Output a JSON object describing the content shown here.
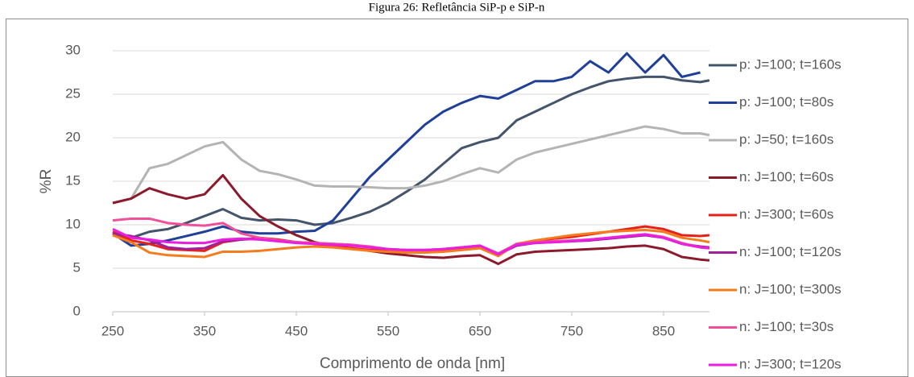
{
  "chart_data": {
    "type": "line",
    "title": "Figura 26: Refletância SiP-p e SiP-n",
    "x_label": "Comprimento de onda [nm]",
    "y_label": "%R",
    "x": [
      250,
      270,
      290,
      310,
      330,
      350,
      370,
      390,
      410,
      430,
      450,
      470,
      490,
      510,
      530,
      550,
      570,
      590,
      610,
      630,
      650,
      670,
      690,
      710,
      730,
      750,
      770,
      790,
      810,
      830,
      850,
      870,
      890,
      900
    ],
    "xlim": [
      250,
      900
    ],
    "xticks": [
      250,
      350,
      450,
      550,
      650,
      750,
      850
    ],
    "ylim": [
      0,
      30
    ],
    "yticks": [
      0,
      5,
      10,
      15,
      20,
      25,
      30
    ],
    "grid": true,
    "legend": "right",
    "series": [
      {
        "name": "p: J=100; t=160s",
        "color": "#44546a",
        "values": [
          8.8,
          8.5,
          9.2,
          9.5,
          10.2,
          11,
          11.8,
          10.8,
          10.5,
          10.6,
          10.5,
          10,
          10.2,
          10.8,
          11.5,
          12.5,
          13.8,
          15.2,
          17,
          18.8,
          19.5,
          20,
          22,
          23,
          24,
          25,
          25.8,
          26.5,
          26.8,
          27,
          27,
          26.6,
          26.4,
          26.6
        ]
      },
      {
        "name": "p: J=100; t=80s",
        "color": "#1f3f99",
        "values": [
          9,
          7.6,
          7.8,
          8.2,
          8.7,
          9.2,
          9.8,
          9.2,
          9,
          9,
          9.2,
          9.3,
          10.5,
          13,
          15.5,
          17.5,
          19.5,
          21.5,
          23,
          24,
          24.8,
          24.5,
          25.5,
          26.5,
          26.5,
          27,
          28.8,
          27.5,
          29.7,
          27.5,
          29.5,
          27,
          27.5,
          null
        ]
      },
      {
        "name": "p: J=50; t=160s",
        "color": "#b4b4b4",
        "values": [
          12.5,
          13,
          16.5,
          17,
          18,
          19,
          19.5,
          17.5,
          16.2,
          15.8,
          15.2,
          14.5,
          14.4,
          14.4,
          14.3,
          14.2,
          14.2,
          14.5,
          15,
          15.8,
          16.5,
          16,
          17.5,
          18.3,
          18.8,
          19.3,
          19.8,
          20.3,
          20.8,
          21.3,
          21,
          20.5,
          20.5,
          20.3
        ]
      },
      {
        "name": "n: J=100; t=60s",
        "color": "#8b1a2c",
        "values": [
          12.5,
          13,
          14.2,
          13.5,
          13,
          13.5,
          15.7,
          13,
          11,
          9.8,
          8.8,
          8,
          7.5,
          7.3,
          7,
          6.7,
          6.5,
          6.3,
          6.2,
          6.4,
          6.5,
          5.5,
          6.6,
          6.9,
          7,
          7.1,
          7.2,
          7.3,
          7.5,
          7.6,
          7.2,
          6.3,
          6,
          5.9
        ]
      },
      {
        "name": "n: J=300; t=60s",
        "color": "#e8201a",
        "values": [
          9.2,
          8.2,
          7.8,
          7.2,
          7.1,
          7,
          8,
          8.3,
          8.5,
          8.3,
          8,
          7.8,
          7.5,
          7.3,
          7.1,
          7,
          6.9,
          7,
          7.1,
          7.3,
          7.5,
          6.5,
          7.8,
          8.1,
          8.4,
          8.6,
          8.9,
          9.2,
          9.5,
          9.8,
          9.5,
          8.8,
          8.7,
          8.8
        ]
      },
      {
        "name": "n: J=100; t=120s",
        "color": "#a0209a",
        "values": [
          9,
          8.7,
          8.2,
          7.4,
          7.2,
          7.3,
          8.1,
          8.3,
          8.4,
          8.2,
          8,
          7.9,
          7.8,
          7.7,
          7.4,
          7.2,
          7.1,
          7.1,
          7.2,
          7.4,
          7.5,
          6.6,
          7.6,
          7.9,
          8,
          8.1,
          8.2,
          8.4,
          8.6,
          8.8,
          8.5,
          7.8,
          7.5,
          7.4
        ]
      },
      {
        "name": "n: J=100; t=300s",
        "color": "#f57c1e",
        "values": [
          8.8,
          8,
          6.8,
          6.5,
          6.4,
          6.3,
          6.9,
          6.9,
          7,
          7.2,
          7.4,
          7.5,
          7.4,
          7.2,
          7,
          6.9,
          6.8,
          6.8,
          6.9,
          7.1,
          7.3,
          6.4,
          7.8,
          8.2,
          8.5,
          8.8,
          9,
          9.2,
          9.3,
          9.4,
          9.2,
          8.5,
          8.2,
          8
        ]
      },
      {
        "name": "n: J=100; t=30s",
        "color": "#f0509a",
        "values": [
          10.5,
          10.7,
          10.7,
          10.2,
          10,
          9.9,
          10.2,
          9,
          8.5,
          8.2,
          8,
          7.9,
          7.8,
          7.7,
          7.5,
          7.2,
          7.1,
          7.1,
          7.2,
          7.4,
          7.6,
          6.7,
          7.8,
          8,
          8.1,
          8.2,
          8.3,
          8.5,
          8.7,
          8.9,
          8.6,
          7.9,
          7.4,
          7.3
        ]
      },
      {
        "name": "n: J=300; t=120s",
        "color": "#e91ee0",
        "values": [
          9.5,
          8.5,
          8.3,
          8,
          7.9,
          7.9,
          8.3,
          8.4,
          8.3,
          8.1,
          7.9,
          7.8,
          7.7,
          7.6,
          7.4,
          7.2,
          7.1,
          7.1,
          7.2,
          7.4,
          7.6,
          6.6,
          7.7,
          7.9,
          8,
          8.1,
          8.3,
          8.5,
          8.7,
          8.9,
          8.5,
          7.8,
          7.4,
          7.3
        ]
      }
    ]
  }
}
